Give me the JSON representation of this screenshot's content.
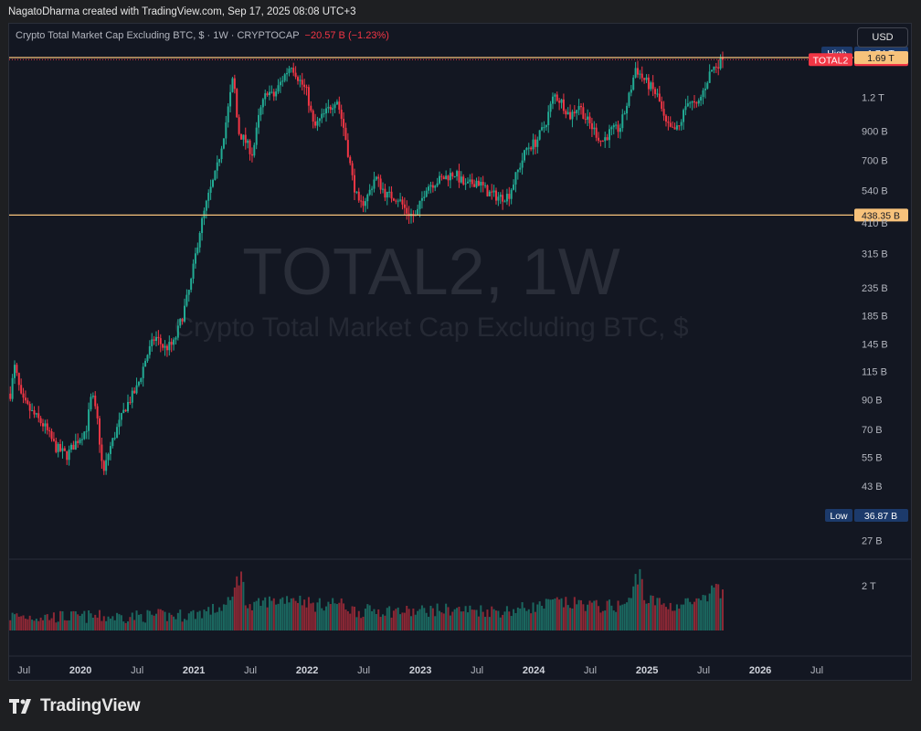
{
  "header": {
    "credit": "NagatoDharma created with TradingView.com, Sep 17, 2025 08:08 UTC+3",
    "symbol": "Crypto Total Market Cap Excluding BTC, $ · 1W · CRYPTOCAP",
    "change": "−20.57 B (−1.23%)",
    "currency": "USD"
  },
  "watermark": {
    "ticker": "TOTAL2, 1W",
    "name": "Crypto Total Market Cap Excluding BTC, $"
  },
  "branding": {
    "name": "TradingView"
  },
  "colors": {
    "up": "#22ab94",
    "down": "#f23645",
    "level_line": "#f7c27b",
    "high_low_badge": "#1c3a6b",
    "last_badge": "#f23645",
    "level_badge": "#f7c27b"
  },
  "chart_data": {
    "type": "candlestick",
    "title": "Crypto Total Market Cap Excluding BTC, $",
    "interval": "1W",
    "yscale": "log",
    "ylim": [
      23,
      1900
    ],
    "y_ticks": [
      {
        "value": 1200,
        "label": "1.2 T"
      },
      {
        "value": 900,
        "label": "900 B"
      },
      {
        "value": 700,
        "label": "700 B"
      },
      {
        "value": 540,
        "label": "540 B"
      },
      {
        "value": 410,
        "label": "410 B"
      },
      {
        "value": 315,
        "label": "315 B"
      },
      {
        "value": 235,
        "label": "235 B"
      },
      {
        "value": 185,
        "label": "185 B"
      },
      {
        "value": 145,
        "label": "145 B"
      },
      {
        "value": 115,
        "label": "115 B"
      },
      {
        "value": 90,
        "label": "90 B"
      },
      {
        "value": 70,
        "label": "70 B"
      },
      {
        "value": 55,
        "label": "55 B"
      },
      {
        "value": 43,
        "label": "43 B"
      },
      {
        "value": 34,
        "label": "34 B"
      },
      {
        "value": 27,
        "label": "27 B"
      }
    ],
    "x_ticks": [
      {
        "t": 2019.5,
        "label": "Jul",
        "bold": false
      },
      {
        "t": 2020.0,
        "label": "2020",
        "bold": true
      },
      {
        "t": 2020.5,
        "label": "Jul",
        "bold": false
      },
      {
        "t": 2021.0,
        "label": "2021",
        "bold": true
      },
      {
        "t": 2021.5,
        "label": "Jul",
        "bold": false
      },
      {
        "t": 2022.0,
        "label": "2022",
        "bold": true
      },
      {
        "t": 2022.5,
        "label": "Jul",
        "bold": false
      },
      {
        "t": 2023.0,
        "label": "2023",
        "bold": true
      },
      {
        "t": 2023.5,
        "label": "Jul",
        "bold": false
      },
      {
        "t": 2024.0,
        "label": "2024",
        "bold": true
      },
      {
        "t": 2024.5,
        "label": "Jul",
        "bold": false
      },
      {
        "t": 2025.0,
        "label": "2025",
        "bold": true
      },
      {
        "t": 2025.5,
        "label": "Jul",
        "bold": false
      },
      {
        "t": 2026.0,
        "label": "2026",
        "bold": true
      },
      {
        "t": 2026.5,
        "label": "Jul",
        "bold": false
      }
    ],
    "xlim": [
      2019.37,
      2026.83
    ],
    "price_anchors": [
      {
        "t": 2019.38,
        "v": 95
      },
      {
        "t": 2019.42,
        "v": 120
      },
      {
        "t": 2019.48,
        "v": 90
      },
      {
        "t": 2019.58,
        "v": 80
      },
      {
        "t": 2019.68,
        "v": 72
      },
      {
        "t": 2019.78,
        "v": 60
      },
      {
        "t": 2019.88,
        "v": 56
      },
      {
        "t": 2019.95,
        "v": 62
      },
      {
        "t": 2020.05,
        "v": 70
      },
      {
        "t": 2020.1,
        "v": 95
      },
      {
        "t": 2020.15,
        "v": 75
      },
      {
        "t": 2020.2,
        "v": 47
      },
      {
        "t": 2020.25,
        "v": 58
      },
      {
        "t": 2020.32,
        "v": 70
      },
      {
        "t": 2020.4,
        "v": 85
      },
      {
        "t": 2020.5,
        "v": 100
      },
      {
        "t": 2020.58,
        "v": 130
      },
      {
        "t": 2020.66,
        "v": 155
      },
      {
        "t": 2020.74,
        "v": 140
      },
      {
        "t": 2020.82,
        "v": 145
      },
      {
        "t": 2020.9,
        "v": 185
      },
      {
        "t": 2020.97,
        "v": 240
      },
      {
        "t": 2021.05,
        "v": 380
      },
      {
        "t": 2021.12,
        "v": 500
      },
      {
        "t": 2021.2,
        "v": 640
      },
      {
        "t": 2021.28,
        "v": 950
      },
      {
        "t": 2021.35,
        "v": 1450
      },
      {
        "t": 2021.39,
        "v": 900
      },
      {
        "t": 2021.45,
        "v": 830
      },
      {
        "t": 2021.52,
        "v": 740
      },
      {
        "t": 2021.58,
        "v": 1050
      },
      {
        "t": 2021.65,
        "v": 1280
      },
      {
        "t": 2021.7,
        "v": 1200
      },
      {
        "t": 2021.78,
        "v": 1400
      },
      {
        "t": 2021.86,
        "v": 1600
      },
      {
        "t": 2021.93,
        "v": 1400
      },
      {
        "t": 2022.0,
        "v": 1250
      },
      {
        "t": 2022.06,
        "v": 920
      },
      {
        "t": 2022.12,
        "v": 1000
      },
      {
        "t": 2022.2,
        "v": 1100
      },
      {
        "t": 2022.26,
        "v": 1200
      },
      {
        "t": 2022.33,
        "v": 900
      },
      {
        "t": 2022.4,
        "v": 600
      },
      {
        "t": 2022.46,
        "v": 470
      },
      {
        "t": 2022.54,
        "v": 520
      },
      {
        "t": 2022.6,
        "v": 610
      },
      {
        "t": 2022.7,
        "v": 520
      },
      {
        "t": 2022.8,
        "v": 510
      },
      {
        "t": 2022.88,
        "v": 450
      },
      {
        "t": 2022.96,
        "v": 430
      },
      {
        "t": 2023.05,
        "v": 560
      },
      {
        "t": 2023.12,
        "v": 580
      },
      {
        "t": 2023.2,
        "v": 600
      },
      {
        "t": 2023.3,
        "v": 630
      },
      {
        "t": 2023.4,
        "v": 560
      },
      {
        "t": 2023.5,
        "v": 590
      },
      {
        "t": 2023.6,
        "v": 530
      },
      {
        "t": 2023.7,
        "v": 510
      },
      {
        "t": 2023.78,
        "v": 520
      },
      {
        "t": 2023.86,
        "v": 640
      },
      {
        "t": 2023.94,
        "v": 780
      },
      {
        "t": 2024.02,
        "v": 820
      },
      {
        "t": 2024.1,
        "v": 950
      },
      {
        "t": 2024.18,
        "v": 1230
      },
      {
        "t": 2024.25,
        "v": 1150
      },
      {
        "t": 2024.32,
        "v": 1020
      },
      {
        "t": 2024.4,
        "v": 1130
      },
      {
        "t": 2024.46,
        "v": 1000
      },
      {
        "t": 2024.54,
        "v": 900
      },
      {
        "t": 2024.6,
        "v": 820
      },
      {
        "t": 2024.68,
        "v": 900
      },
      {
        "t": 2024.76,
        "v": 920
      },
      {
        "t": 2024.84,
        "v": 1200
      },
      {
        "t": 2024.9,
        "v": 1550
      },
      {
        "t": 2024.96,
        "v": 1420
      },
      {
        "t": 2025.04,
        "v": 1300
      },
      {
        "t": 2025.1,
        "v": 1200
      },
      {
        "t": 2025.16,
        "v": 960
      },
      {
        "t": 2025.22,
        "v": 900
      },
      {
        "t": 2025.28,
        "v": 920
      },
      {
        "t": 2025.36,
        "v": 1180
      },
      {
        "t": 2025.44,
        "v": 1100
      },
      {
        "t": 2025.5,
        "v": 1280
      },
      {
        "t": 2025.56,
        "v": 1500
      },
      {
        "t": 2025.62,
        "v": 1600
      },
      {
        "t": 2025.68,
        "v": 1660
      }
    ],
    "volume_spikes": [
      {
        "t": 2021.38,
        "v": 2.2
      },
      {
        "t": 2021.42,
        "v": 2.4
      },
      {
        "t": 2024.9,
        "v": 2.3
      },
      {
        "t": 2024.94,
        "v": 2.5
      },
      {
        "t": 2025.58,
        "v": 1.9
      },
      {
        "t": 2025.62,
        "v": 2.0
      }
    ],
    "volume_axis": {
      "label": "2 T",
      "value": 2
    },
    "levels": [
      {
        "value": 1690,
        "label": "1.69 T"
      },
      {
        "value": 438.35,
        "label": "438.35 B"
      }
    ],
    "high": {
      "label": "High",
      "value": "1.74 T",
      "v": 1740
    },
    "low": {
      "label": "Low",
      "value": "36.87 B",
      "v": 36.87
    },
    "last": {
      "label": "TOTAL2",
      "value": "1.66 T",
      "v": 1660
    }
  }
}
